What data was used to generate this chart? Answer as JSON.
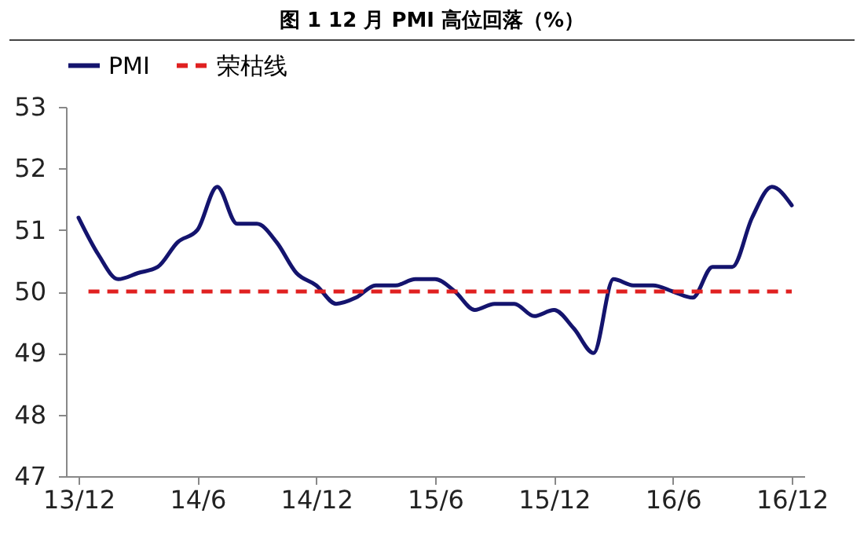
{
  "chart_data": {
    "type": "line",
    "title": "图 1  12 月 PMI 高位回落（%）",
    "categories": [
      "13/12",
      null,
      null,
      null,
      null,
      null,
      "14/6",
      null,
      null,
      null,
      null,
      null,
      "14/12",
      null,
      null,
      null,
      null,
      null,
      "15/6",
      null,
      null,
      null,
      null,
      null,
      "15/12",
      null,
      null,
      null,
      null,
      null,
      "16/6",
      null,
      null,
      null,
      null,
      null,
      "16/12"
    ],
    "series": [
      {
        "name": "PMI",
        "color": "#14146e",
        "values": [
          51.2,
          50.6,
          50.2,
          50.3,
          50.4,
          50.8,
          51.0,
          51.7,
          51.1,
          51.1,
          50.8,
          50.3,
          50.1,
          49.8,
          49.9,
          50.1,
          50.1,
          50.2,
          50.2,
          50.0,
          49.7,
          49.8,
          49.8,
          49.6,
          49.7,
          49.4,
          49.0,
          50.2,
          50.1,
          50.1,
          50.0,
          49.9,
          50.4,
          50.4,
          51.2,
          51.7,
          51.4
        ]
      }
    ],
    "ylim": [
      47,
      53
    ],
    "yticks": [
      47,
      48,
      49,
      50,
      51,
      52,
      53
    ],
    "ref_lines": [
      {
        "axis": "y",
        "value": 50,
        "label": "荣枯线",
        "color": "#e02020",
        "line_style": "dashed"
      }
    ],
    "legend": "top",
    "grid": false,
    "line_style": "solid",
    "marker": "none"
  }
}
